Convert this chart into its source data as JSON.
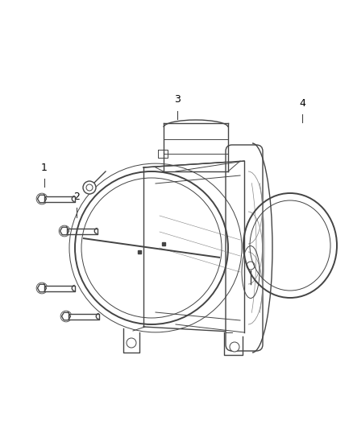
{
  "bg_color": "#ffffff",
  "line_color": "#444444",
  "line_color_light": "#888888",
  "fig_width": 4.38,
  "fig_height": 5.33,
  "dpi": 100,
  "label_fontsize": 9
}
